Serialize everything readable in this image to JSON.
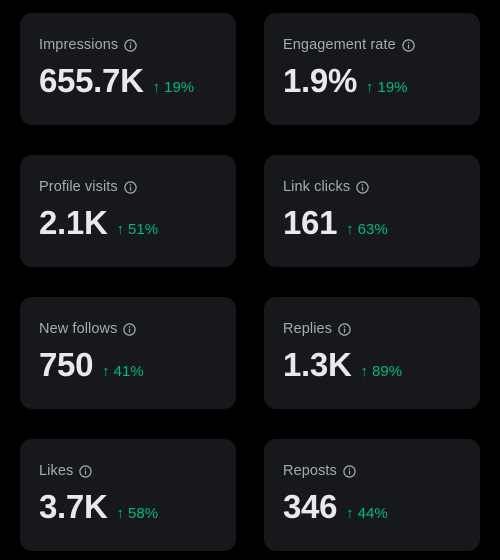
{
  "colors": {
    "background": "#000000",
    "card": "#16181c",
    "label": "#a6abb0",
    "value": "#e7e9ea",
    "positive": "#00ba7c"
  },
  "metrics": [
    {
      "label": "Impressions",
      "value": "655.7K",
      "delta": "19%",
      "trend_icon": "arrow-up-icon",
      "info_icon": "info-icon"
    },
    {
      "label": "Engagement rate",
      "value": "1.9%",
      "delta": "19%",
      "trend_icon": "arrow-up-icon",
      "info_icon": "info-icon"
    },
    {
      "label": "Profile visits",
      "value": "2.1K",
      "delta": "51%",
      "trend_icon": "arrow-up-icon",
      "info_icon": "info-icon"
    },
    {
      "label": "Link clicks",
      "value": "161",
      "delta": "63%",
      "trend_icon": "arrow-up-icon",
      "info_icon": "info-icon"
    },
    {
      "label": "New follows",
      "value": "750",
      "delta": "41%",
      "trend_icon": "arrow-up-icon",
      "info_icon": "info-icon"
    },
    {
      "label": "Replies",
      "value": "1.3K",
      "delta": "89%",
      "trend_icon": "arrow-up-icon",
      "info_icon": "info-icon"
    },
    {
      "label": "Likes",
      "value": "3.7K",
      "delta": "58%",
      "trend_icon": "arrow-up-icon",
      "info_icon": "info-icon"
    },
    {
      "label": "Reposts",
      "value": "346",
      "delta": "44%",
      "trend_icon": "arrow-up-icon",
      "info_icon": "info-icon"
    }
  ]
}
